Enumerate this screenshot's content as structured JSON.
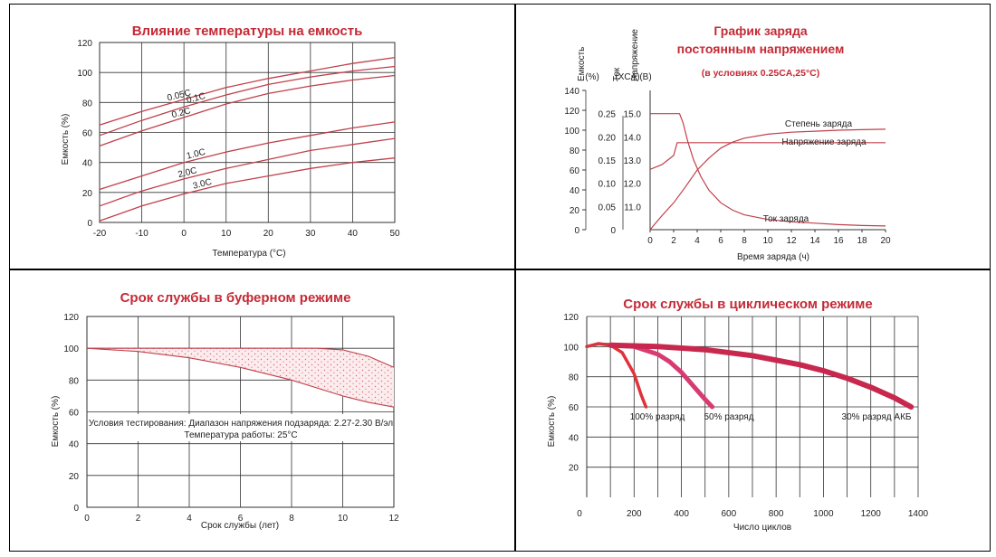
{
  "chart_data": [
    {
      "type": "line",
      "title": "Влияние температуры на емкость",
      "xlabel": "Температура (°C)",
      "ylabel": "Емкость (%)",
      "xlim": [
        -20,
        50
      ],
      "ylim": [
        0,
        120
      ],
      "x_ticks": [
        "-20",
        "-10",
        "0",
        "10",
        "20",
        "30",
        "40",
        "50"
      ],
      "y_ticks": [
        "0",
        "20",
        "40",
        "60",
        "80",
        "100",
        "120"
      ],
      "grid": true,
      "series": [
        {
          "name": "0.05C",
          "x": [
            -20,
            -10,
            0,
            10,
            20,
            30,
            40,
            50
          ],
          "y": [
            65,
            74,
            82,
            90,
            96,
            101,
            106,
            110
          ]
        },
        {
          "name": "0.1C",
          "x": [
            -20,
            -10,
            0,
            10,
            20,
            30,
            40,
            50
          ],
          "y": [
            58,
            68,
            77,
            85,
            92,
            97,
            101,
            104
          ]
        },
        {
          "name": "0.2C",
          "x": [
            -20,
            -10,
            0,
            10,
            20,
            30,
            40,
            50
          ],
          "y": [
            51,
            61,
            70,
            79,
            86,
            91,
            95,
            98
          ]
        },
        {
          "name": "1.0C",
          "x": [
            -20,
            -10,
            0,
            10,
            20,
            30,
            40,
            50
          ],
          "y": [
            22,
            31,
            40,
            47,
            53,
            58,
            63,
            67
          ]
        },
        {
          "name": "2.0C",
          "x": [
            -20,
            -10,
            0,
            10,
            20,
            30,
            40,
            50
          ],
          "y": [
            11,
            21,
            29,
            36,
            42,
            48,
            52,
            56
          ]
        },
        {
          "name": "3.0C",
          "x": [
            -20,
            -10,
            0,
            10,
            20,
            30,
            40,
            50
          ],
          "y": [
            1,
            11,
            19,
            26,
            31,
            36,
            40,
            43
          ]
        }
      ]
    },
    {
      "type": "line",
      "title": "График заряда постоянным напряжением",
      "title_lines": [
        "График заряда",
        "постоянным напряжением"
      ],
      "subtitle": "(в условиях 0.25CA,25°C)",
      "xlabel": "Время заряда (ч)",
      "xlim": [
        0,
        20
      ],
      "x_ticks": [
        "0",
        "2",
        "4",
        "6",
        "8",
        "10",
        "12",
        "14",
        "16",
        "18",
        "20"
      ],
      "axes": [
        {
          "label_lines": [
            "Емкость",
            "(%)"
          ],
          "ylim": [
            0,
            140
          ],
          "ticks": [
            "0",
            "20",
            "40",
            "60",
            "80",
            "100",
            "120",
            "140"
          ]
        },
        {
          "label_lines": [
            "Ток",
            "(XCA)"
          ],
          "ylim": [
            0,
            0.3
          ],
          "ticks": [
            "0",
            "0.05",
            "0.10",
            "0.15",
            "0.20",
            "0.25"
          ]
        },
        {
          "label_lines": [
            "Напряжение",
            "(B)"
          ],
          "ylim": [
            10.0,
            16.0
          ],
          "ticks": [
            "11.0",
            "12.0",
            "13.0",
            "14.0",
            "15.0"
          ]
        }
      ],
      "series": [
        {
          "name": "Степень заряда",
          "axis": 0,
          "x": [
            0,
            0.5,
            1,
            2,
            3,
            4,
            5,
            6,
            7,
            8,
            10,
            12,
            14,
            16,
            18,
            20
          ],
          "y": [
            0,
            7,
            14,
            27,
            43,
            60,
            72,
            82,
            88,
            92,
            96,
            98,
            99,
            100,
            100.5,
            101
          ]
        },
        {
          "name": "Напряжение заряда",
          "axis": 2,
          "x": [
            0,
            0.5,
            1,
            1.5,
            2,
            2.3,
            3,
            5,
            10,
            15,
            20
          ],
          "y": [
            12.6,
            12.7,
            12.8,
            13.0,
            13.2,
            13.75,
            13.75,
            13.75,
            13.75,
            13.75,
            13.75
          ]
        },
        {
          "name": "Ток заряда",
          "axis": 1,
          "x": [
            0,
            2.5,
            2.8,
            3.2,
            3.7,
            4.3,
            5,
            6,
            7,
            8,
            10,
            12,
            14,
            16,
            18,
            20
          ],
          "y": [
            0.25,
            0.25,
            0.23,
            0.19,
            0.15,
            0.115,
            0.085,
            0.058,
            0.042,
            0.032,
            0.022,
            0.017,
            0.014,
            0.011,
            0.009,
            0.008
          ]
        }
      ]
    },
    {
      "type": "area",
      "title": "Срок службы в буферном режиме",
      "xlabel": "Срок службы (лет)",
      "ylabel": "Емкость (%)",
      "xlim": [
        0,
        12
      ],
      "ylim": [
        0,
        120
      ],
      "x_ticks": [
        "0",
        "2",
        "4",
        "6",
        "8",
        "10",
        "12"
      ],
      "y_ticks": [
        "0",
        "20",
        "40",
        "60",
        "80",
        "100",
        "120"
      ],
      "grid": true,
      "annotation_lines": [
        "Условия тестирования: Диапазон напряжения подзаряда: 2.27-2.30 В/эл",
        "Температура работы: 25°C"
      ],
      "series": [
        {
          "name": "upper",
          "x": [
            0,
            2,
            4,
            6,
            8,
            9,
            10,
            11,
            12
          ],
          "y": [
            100,
            100,
            100,
            100,
            100,
            100,
            99,
            95,
            88
          ]
        },
        {
          "name": "lower",
          "x": [
            0,
            2,
            4,
            6,
            8,
            9,
            10,
            11,
            12
          ],
          "y": [
            100,
            98,
            94,
            88,
            80,
            75,
            70,
            66,
            63
          ]
        }
      ]
    },
    {
      "type": "line",
      "title": "Срок службы в циклическом режиме",
      "xlabel": "Число циклов",
      "ylabel": "Емкость (%)",
      "xlim": [
        0,
        1400
      ],
      "ylim": [
        0,
        120
      ],
      "x_ticks": [
        "0",
        "200",
        "400",
        "600",
        "800",
        "1000",
        "1200",
        "1400"
      ],
      "y_ticks": [
        "20",
        "40",
        "60",
        "80",
        "100",
        "120"
      ],
      "grid": true,
      "series": [
        {
          "name": "100% разряд",
          "x": [
            0,
            50,
            100,
            150,
            200,
            230,
            250
          ],
          "y": [
            100,
            102,
            101,
            96,
            82,
            68,
            60
          ]
        },
        {
          "name": "50% разряд",
          "x": [
            100,
            200,
            300,
            350,
            400,
            450,
            500,
            530
          ],
          "y": [
            101,
            100,
            95,
            90,
            83,
            74,
            65,
            60
          ]
        },
        {
          "name": "30% разряд АКБ",
          "x": [
            100,
            300,
            500,
            700,
            900,
            1000,
            1100,
            1200,
            1300,
            1370
          ],
          "y": [
            101,
            100,
            98,
            94,
            88,
            84,
            79,
            73,
            66,
            60
          ]
        }
      ]
    }
  ]
}
